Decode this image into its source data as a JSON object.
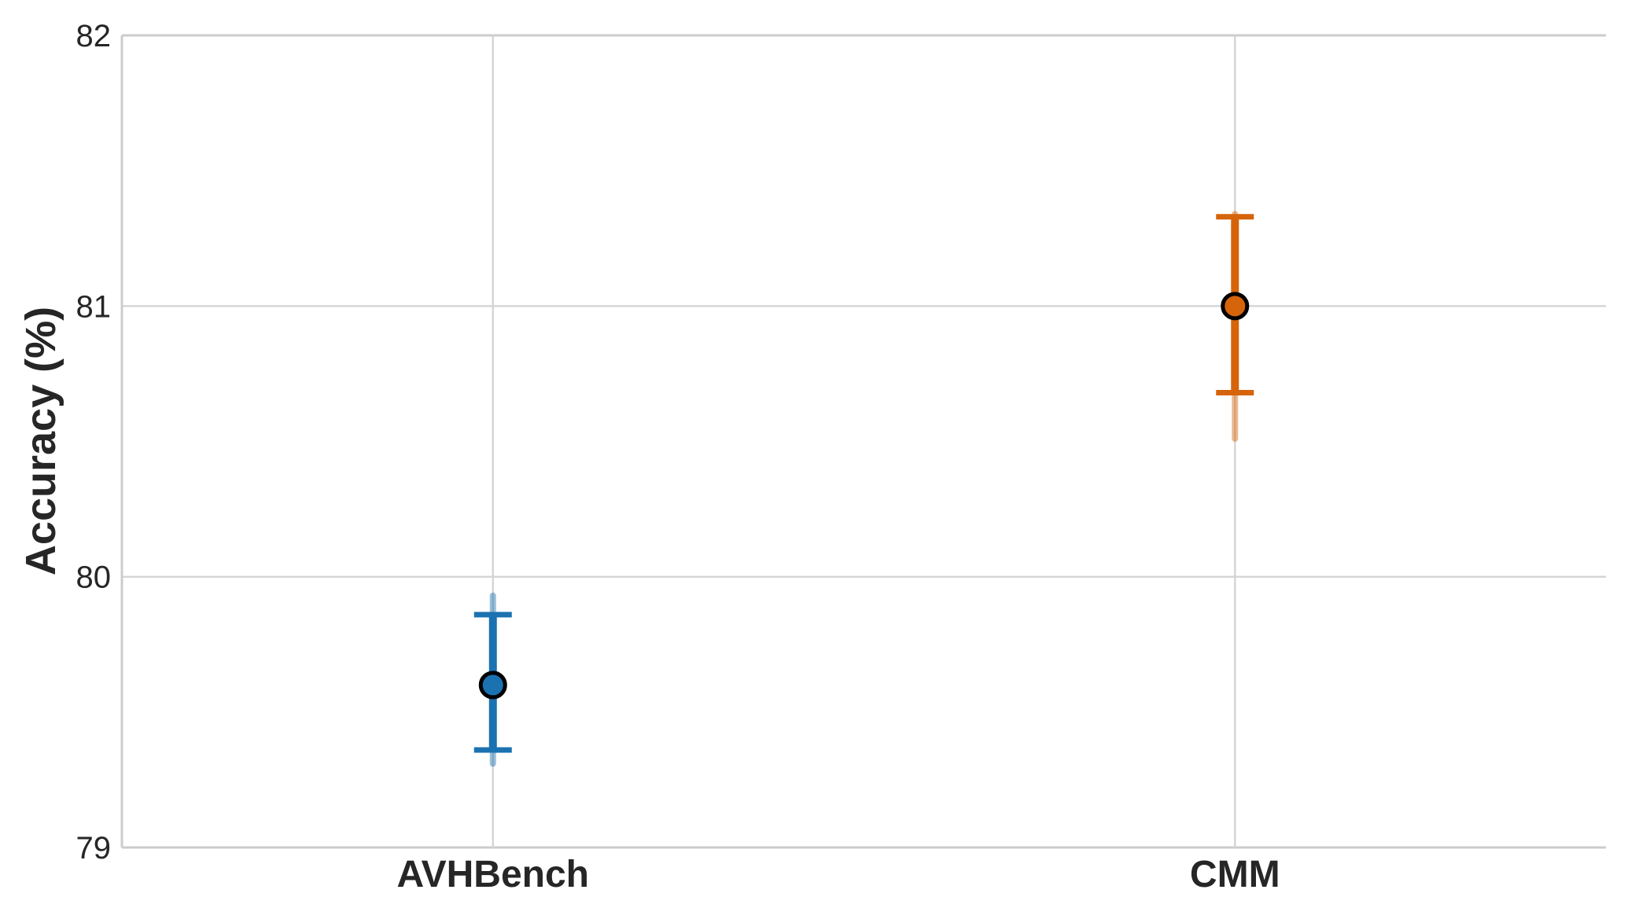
{
  "chart_data": {
    "type": "scatter",
    "subtype": "point-with-errorbars",
    "title": "",
    "xlabel": "",
    "ylabel": "Accuracy (%)",
    "ylim": [
      79,
      82
    ],
    "yticks": [
      "79",
      "80",
      "81",
      "82"
    ],
    "categories": [
      "AVHBench",
      "CMM"
    ],
    "grid": true,
    "legend_position": "none",
    "series": [
      {
        "name": "AVHBench",
        "mean": 79.6,
        "errorbar_low": 79.36,
        "errorbar_high": 79.86,
        "ci_low": 79.31,
        "ci_high": 79.93,
        "color": "#1b72b1",
        "ci_alpha": 0.45
      },
      {
        "name": "CMM",
        "mean": 81.0,
        "errorbar_low": 80.68,
        "errorbar_high": 81.33,
        "ci_low": 80.51,
        "ci_high": 81.34,
        "color": "#d5640a",
        "ci_alpha": 0.45
      }
    ],
    "style": {
      "grid_color": "#d4d4d4",
      "frame_color": "#cccccc",
      "text_color": "#262626",
      "marker_edge_color": "#000000"
    }
  }
}
